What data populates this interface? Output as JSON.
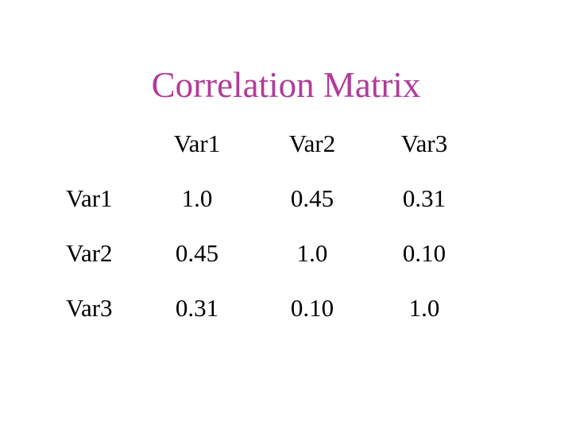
{
  "slide": {
    "title": "Correlation Matrix",
    "title_color": "#b23b99",
    "text_color": "#000000",
    "background_color": "#ffffff"
  },
  "table": {
    "corner": "",
    "col_headers": [
      "Var1",
      "Var2",
      "Var3"
    ],
    "rows": [
      {
        "label": "Var1",
        "values": [
          "1.0",
          "0.45",
          "0.31"
        ]
      },
      {
        "label": "Var2",
        "values": [
          "0.45",
          "1.0",
          "0.10"
        ]
      },
      {
        "label": "Var3",
        "values": [
          "0.31",
          "0.10",
          "1.0"
        ]
      }
    ]
  },
  "chart_data": {
    "type": "table",
    "title": "Correlation Matrix",
    "columns": [
      "",
      "Var1",
      "Var2",
      "Var3"
    ],
    "rows": [
      [
        "Var1",
        1.0,
        0.45,
        0.31
      ],
      [
        "Var2",
        0.45,
        1.0,
        0.1
      ],
      [
        "Var3",
        0.31,
        0.1,
        1.0
      ]
    ]
  }
}
